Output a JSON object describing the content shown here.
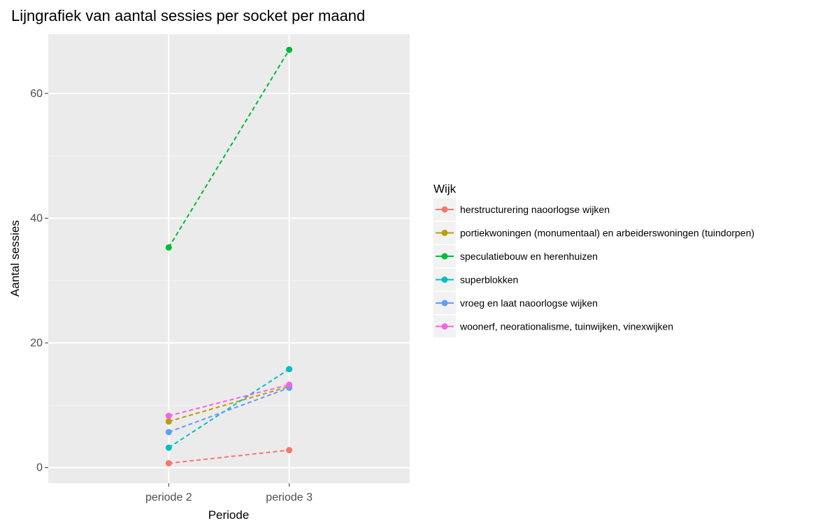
{
  "chart_data": {
    "type": "line",
    "title": "Lijngrafiek van aantal sessies per socket per maand",
    "xlabel": "Periode",
    "ylabel": "Aantal sessies",
    "categories": [
      "periode 2",
      "periode 3"
    ],
    "ylim": [
      -2.5,
      69.5
    ],
    "yticks": [
      0,
      20,
      40,
      60
    ],
    "grid": true,
    "line_style": "dashed",
    "legend": {
      "title": "Wijk",
      "position": "right"
    },
    "series": [
      {
        "name": "herstructurering naoorlogse wijken",
        "color": "#F8766D",
        "values": [
          0.7,
          2.8
        ]
      },
      {
        "name": "portiekwoningen (monumentaal) en arbeiderswoningen (tuindorpen)",
        "color": "#B79F00",
        "values": [
          7.4,
          13.0
        ]
      },
      {
        "name": "speculatiebouw en herenhuizen",
        "color": "#00BA38",
        "values": [
          35.3,
          67.0
        ]
      },
      {
        "name": "superblokken",
        "color": "#00BFC4",
        "values": [
          3.2,
          15.8
        ]
      },
      {
        "name": "vroeg en laat naoorlogse wijken",
        "color": "#619CFF",
        "values": [
          5.7,
          12.8
        ]
      },
      {
        "name": "woonerf, neorationalisme, tuinwijken, vinexwijken",
        "color": "#F564E3",
        "values": [
          8.3,
          13.3
        ]
      }
    ]
  }
}
